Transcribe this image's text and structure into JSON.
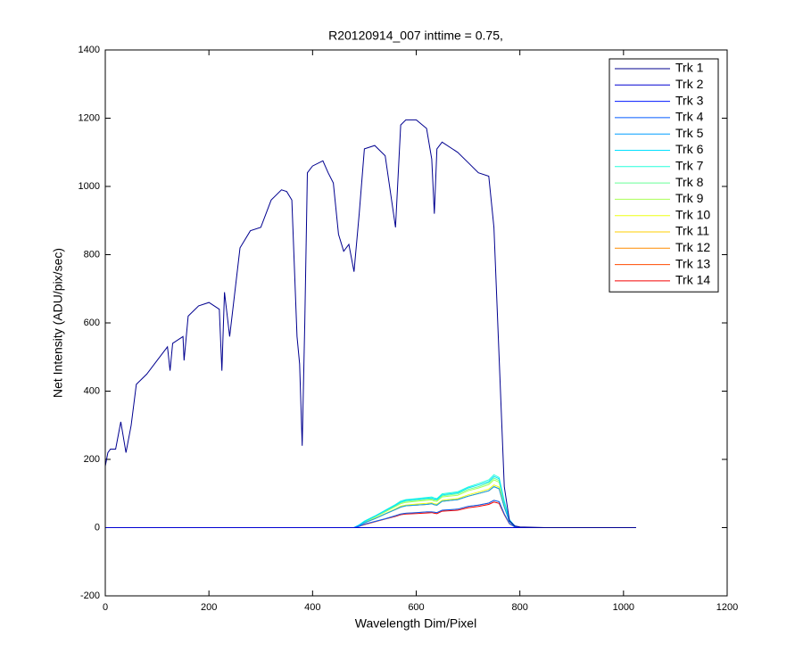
{
  "chart_data": {
    "type": "line",
    "title": "R20120914_007 inttime = 0.75,",
    "x_label": "Wavelength Dim/Pixel",
    "y_label": "Net Intensity (ADU/pix/sec)",
    "xlim": [
      0,
      1200
    ],
    "xticks": [
      0,
      200,
      400,
      600,
      800,
      1000,
      1200
    ],
    "ylim": [
      -200,
      1400
    ],
    "yticks": [
      -200,
      0,
      200,
      400,
      600,
      800,
      1000,
      1200,
      1400
    ],
    "grid": false,
    "legend": "northeast",
    "x": [
      0,
      5,
      10,
      20,
      30,
      40,
      50,
      60,
      80,
      100,
      120,
      125,
      130,
      150,
      152,
      160,
      180,
      200,
      220,
      225,
      230,
      240,
      260,
      280,
      300,
      320,
      340,
      350,
      360,
      370,
      375,
      380,
      385,
      390,
      400,
      420,
      430,
      440,
      450,
      460,
      470,
      480,
      490,
      500,
      520,
      540,
      560,
      570,
      580,
      600,
      620,
      630,
      635,
      640,
      650,
      680,
      700,
      720,
      740,
      750,
      760,
      770,
      780,
      790,
      800,
      850,
      900,
      1000,
      1024
    ],
    "series": [
      {
        "name": "Trk 1",
        "color": "#00008F",
        "values": [
          180,
          220,
          230,
          230,
          310,
          220,
          300,
          420,
          450,
          490,
          530,
          460,
          540,
          560,
          490,
          620,
          650,
          660,
          640,
          460,
          690,
          560,
          820,
          870,
          880,
          960,
          990,
          985,
          960,
          560,
          480,
          240,
          600,
          1040,
          1060,
          1075,
          1040,
          1010,
          860,
          810,
          830,
          750,
          920,
          1110,
          1120,
          1090,
          880,
          1180,
          1195,
          1195,
          1170,
          1080,
          920,
          1110,
          1130,
          1100,
          1070,
          1040,
          1030,
          880,
          500,
          120,
          20,
          5,
          2,
          0,
          0,
          0,
          0
        ]
      },
      {
        "name": "Trk 2",
        "color": "#0000D2",
        "values": [
          0,
          0,
          0,
          0,
          0,
          0,
          0,
          0,
          0,
          0,
          0,
          0,
          0,
          0,
          0,
          0,
          0,
          0,
          0,
          0,
          0,
          0,
          0,
          0,
          0,
          0,
          0,
          0,
          0,
          0,
          0,
          0,
          0,
          0,
          0,
          0,
          0,
          0,
          0,
          0,
          0,
          0,
          0,
          0,
          0,
          0,
          0,
          0,
          0,
          0,
          0,
          0,
          0,
          0,
          0,
          0,
          0,
          0,
          0,
          0,
          0,
          0,
          0,
          0,
          0,
          0,
          0,
          0,
          0
        ]
      },
      {
        "name": "Trk 3",
        "color": "#0017FF",
        "values": [
          0,
          0,
          0,
          0,
          0,
          0,
          0,
          0,
          0,
          0,
          0,
          0,
          0,
          0,
          0,
          0,
          0,
          0,
          0,
          0,
          0,
          0,
          0,
          0,
          0,
          0,
          0,
          0,
          0,
          0,
          0,
          0,
          0,
          0,
          0,
          0,
          0,
          0,
          0,
          0,
          0,
          0,
          0,
          0,
          0,
          0,
          0,
          0,
          0,
          0,
          0,
          0,
          0,
          0,
          0,
          0,
          0,
          0,
          0,
          0,
          0,
          0,
          0,
          0,
          0,
          0,
          0,
          0,
          0
        ]
      },
      {
        "name": "Trk 4",
        "color": "#005AFF",
        "values": [
          0,
          0,
          0,
          0,
          0,
          0,
          0,
          0,
          0,
          0,
          0,
          0,
          0,
          0,
          0,
          0,
          0,
          0,
          0,
          0,
          0,
          0,
          0,
          0,
          0,
          0,
          0,
          0,
          0,
          0,
          0,
          0,
          0,
          0,
          0,
          0,
          0,
          0,
          0,
          0,
          0,
          0,
          4,
          10,
          18,
          26,
          35,
          40,
          42,
          44,
          46,
          46,
          45,
          44,
          51,
          54,
          62,
          66,
          72,
          80,
          76,
          40,
          12,
          2,
          0,
          0,
          0,
          0,
          0
        ]
      },
      {
        "name": "Trk 5",
        "color": "#009DFF",
        "values": [
          0,
          0,
          0,
          0,
          0,
          0,
          0,
          0,
          0,
          0,
          0,
          0,
          0,
          0,
          0,
          0,
          0,
          0,
          0,
          0,
          0,
          0,
          0,
          0,
          0,
          0,
          0,
          0,
          0,
          0,
          0,
          0,
          0,
          0,
          0,
          0,
          0,
          0,
          0,
          0,
          0,
          0,
          6,
          14,
          26,
          40,
          53,
          60,
          64,
          66,
          68,
          70,
          67,
          66,
          77,
          82,
          92,
          100,
          108,
          120,
          114,
          60,
          18,
          4,
          0,
          0,
          0,
          0,
          0
        ]
      },
      {
        "name": "Trk 6",
        "color": "#00E0FF",
        "values": [
          0,
          0,
          0,
          0,
          0,
          0,
          0,
          0,
          0,
          0,
          0,
          0,
          0,
          0,
          0,
          0,
          0,
          0,
          0,
          0,
          0,
          0,
          0,
          0,
          0,
          0,
          0,
          0,
          0,
          0,
          0,
          0,
          0,
          0,
          0,
          0,
          0,
          0,
          0,
          0,
          0,
          0,
          8,
          18,
          33,
          50,
          66,
          75,
          80,
          83,
          86,
          87,
          84,
          83,
          96,
          102,
          116,
          125,
          135,
          150,
          143,
          75,
          23,
          5,
          0,
          0,
          0,
          0,
          0
        ]
      },
      {
        "name": "Trk 7",
        "color": "#24FFDB",
        "values": [
          0,
          0,
          0,
          0,
          0,
          0,
          0,
          0,
          0,
          0,
          0,
          0,
          0,
          0,
          0,
          0,
          0,
          0,
          0,
          0,
          0,
          0,
          0,
          0,
          0,
          0,
          0,
          0,
          0,
          0,
          0,
          0,
          0,
          0,
          0,
          0,
          0,
          0,
          0,
          0,
          0,
          0,
          8,
          19,
          34,
          51,
          68,
          78,
          82,
          85,
          88,
          90,
          87,
          85,
          99,
          105,
          119,
          129,
          140,
          155,
          147,
          78,
          23,
          5,
          0,
          0,
          0,
          0,
          0
        ]
      },
      {
        "name": "Trk 8",
        "color": "#67FF98",
        "values": [
          0,
          0,
          0,
          0,
          0,
          0,
          0,
          0,
          0,
          0,
          0,
          0,
          0,
          0,
          0,
          0,
          0,
          0,
          0,
          0,
          0,
          0,
          0,
          0,
          0,
          0,
          0,
          0,
          0,
          0,
          0,
          0,
          0,
          0,
          0,
          0,
          0,
          0,
          0,
          0,
          0,
          0,
          7,
          17,
          32,
          48,
          64,
          73,
          77,
          80,
          83,
          84,
          81,
          80,
          93,
          99,
          112,
          120,
          131,
          145,
          138,
          73,
          22,
          4,
          0,
          0,
          0,
          0,
          0
        ]
      },
      {
        "name": "Trk 9",
        "color": "#AAFF55",
        "values": [
          0,
          0,
          0,
          0,
          0,
          0,
          0,
          0,
          0,
          0,
          0,
          0,
          0,
          0,
          0,
          0,
          0,
          0,
          0,
          0,
          0,
          0,
          0,
          0,
          0,
          0,
          0,
          0,
          0,
          0,
          0,
          0,
          0,
          0,
          0,
          0,
          0,
          0,
          0,
          0,
          0,
          0,
          7,
          17,
          31,
          46,
          62,
          70,
          74,
          77,
          80,
          81,
          78,
          77,
          90,
          95,
          108,
          116,
          126,
          140,
          133,
          70,
          21,
          4,
          0,
          0,
          0,
          0,
          0
        ]
      },
      {
        "name": "Trk 10",
        "color": "#EDFF12",
        "values": [
          0,
          0,
          0,
          0,
          0,
          0,
          0,
          0,
          0,
          0,
          0,
          0,
          0,
          0,
          0,
          0,
          0,
          0,
          0,
          0,
          0,
          0,
          0,
          0,
          0,
          0,
          0,
          0,
          0,
          0,
          0,
          0,
          0,
          0,
          0,
          0,
          0,
          0,
          0,
          0,
          0,
          0,
          6,
          15,
          28,
          41,
          55,
          63,
          66,
          69,
          71,
          73,
          70,
          69,
          80,
          85,
          96,
          104,
          113,
          125,
          119,
          63,
          19,
          4,
          0,
          0,
          0,
          0,
          0
        ]
      },
      {
        "name": "Trk 11",
        "color": "#FFCF00",
        "values": [
          0,
          0,
          0,
          0,
          0,
          0,
          0,
          0,
          0,
          0,
          0,
          0,
          0,
          0,
          0,
          0,
          0,
          0,
          0,
          0,
          0,
          0,
          0,
          0,
          0,
          0,
          0,
          0,
          0,
          0,
          0,
          0,
          0,
          0,
          0,
          0,
          0,
          0,
          0,
          0,
          0,
          0,
          6,
          14,
          26,
          40,
          53,
          60,
          64,
          66,
          68,
          70,
          67,
          66,
          77,
          82,
          92,
          100,
          108,
          120,
          114,
          60,
          18,
          4,
          0,
          0,
          0,
          0,
          0
        ]
      },
      {
        "name": "Trk 12",
        "color": "#FF8C00",
        "values": [
          0,
          0,
          0,
          0,
          0,
          0,
          0,
          0,
          0,
          0,
          0,
          0,
          0,
          0,
          0,
          0,
          0,
          0,
          0,
          0,
          0,
          0,
          0,
          0,
          0,
          0,
          0,
          0,
          0,
          0,
          0,
          0,
          0,
          0,
          0,
          0,
          0,
          0,
          0,
          0,
          0,
          0,
          4,
          10,
          18,
          26,
          35,
          40,
          42,
          44,
          46,
          46,
          45,
          44,
          51,
          54,
          62,
          66,
          72,
          80,
          76,
          40,
          12,
          2,
          0,
          0,
          0,
          0,
          0
        ]
      },
      {
        "name": "Trk 13",
        "color": "#FF4900",
        "values": [
          0,
          0,
          0,
          0,
          0,
          0,
          0,
          0,
          0,
          0,
          0,
          0,
          0,
          0,
          0,
          0,
          0,
          0,
          0,
          0,
          0,
          0,
          0,
          0,
          0,
          0,
          0,
          0,
          0,
          0,
          0,
          0,
          0,
          0,
          0,
          0,
          0,
          0,
          0,
          0,
          0,
          0,
          6,
          14,
          26,
          40,
          53,
          60,
          64,
          66,
          68,
          70,
          67,
          66,
          77,
          82,
          92,
          100,
          108,
          120,
          114,
          60,
          18,
          4,
          0,
          0,
          0,
          0,
          0
        ]
      },
      {
        "name": "Trk 14",
        "color": "#F50000",
        "values": [
          0,
          0,
          0,
          0,
          0,
          0,
          0,
          0,
          0,
          0,
          0,
          0,
          0,
          0,
          0,
          0,
          0,
          0,
          0,
          0,
          0,
          0,
          0,
          0,
          0,
          0,
          0,
          0,
          0,
          0,
          0,
          0,
          0,
          0,
          0,
          0,
          0,
          0,
          0,
          0,
          0,
          0,
          4,
          9,
          17,
          25,
          33,
          38,
          40,
          41,
          43,
          44,
          42,
          41,
          48,
          51,
          58,
          62,
          68,
          75,
          71,
          38,
          11,
          2,
          0,
          0,
          0,
          0,
          0
        ]
      }
    ]
  }
}
